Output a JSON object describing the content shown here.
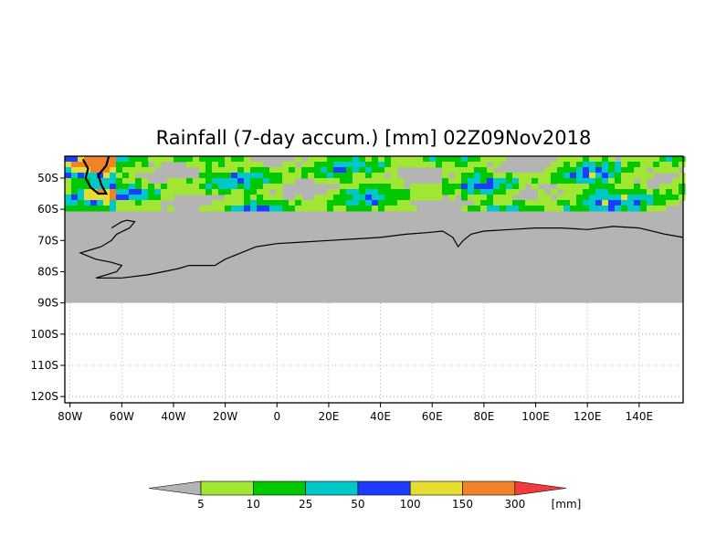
{
  "title": "Rainfall (7-day accum.) [mm] 02Z09Nov2018",
  "map": {
    "lon_range": [
      -82,
      157
    ],
    "lat_range": [
      -122,
      -43
    ],
    "data_lat_bottom": -90,
    "land_lat_top": -60,
    "background_color": "#b4b4b4",
    "grid": "dotted",
    "lon_ticks": [
      {
        "label": "80W",
        "lon": -80
      },
      {
        "label": "60W",
        "lon": -60
      },
      {
        "label": "40W",
        "lon": -40
      },
      {
        "label": "20W",
        "lon": -20
      },
      {
        "label": "0",
        "lon": 0
      },
      {
        "label": "20E",
        "lon": 20
      },
      {
        "label": "40E",
        "lon": 40
      },
      {
        "label": "60E",
        "lon": 60
      },
      {
        "label": "80E",
        "lon": 80
      },
      {
        "label": "100E",
        "lon": 100
      },
      {
        "label": "120E",
        "lon": 120
      },
      {
        "label": "140E",
        "lon": 140
      }
    ],
    "lat_ticks": [
      {
        "label": "50S",
        "lat": -50
      },
      {
        "label": "60S",
        "lat": -60
      },
      {
        "label": "70S",
        "lat": -70
      },
      {
        "label": "80S",
        "lat": -80
      },
      {
        "label": "90S",
        "lat": -90
      },
      {
        "label": "100S",
        "lat": -100
      },
      {
        "label": "110S",
        "lat": -110
      },
      {
        "label": "120S",
        "lat": -120
      }
    ]
  },
  "colorbar": {
    "unit": "[mm]",
    "under_color": "#b4b4b4",
    "over_color": "#f03c3c",
    "bins": [
      {
        "color": "#a0e632",
        "label": "5"
      },
      {
        "color": "#00c800",
        "label": "10"
      },
      {
        "color": "#00c8c8",
        "label": "25"
      },
      {
        "color": "#1e3cff",
        "label": "50"
      },
      {
        "color": "#e6dc32",
        "label": "100"
      },
      {
        "color": "#f08228",
        "label": "150"
      },
      {
        "color": "",
        "label": "300"
      }
    ]
  }
}
